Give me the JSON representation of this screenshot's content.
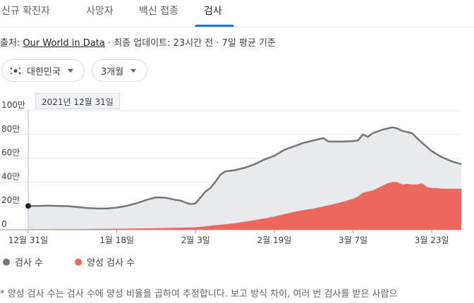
{
  "tabs": [
    {
      "label": "신규 확진자",
      "active": false
    },
    {
      "label": "사망자",
      "active": false
    },
    {
      "label": "백신 접종",
      "active": false
    },
    {
      "label": "검사",
      "active": true
    }
  ],
  "source": {
    "prefix": "출처: ",
    "link": "Our World in Data",
    "suffix": " · 최종 업데이트: 23시간 전 · 7일 평균 기준"
  },
  "filters": {
    "region": "대한민국",
    "period": "3개월"
  },
  "tooltip": "2021년 12월 31일",
  "legend": [
    {
      "label": "검사 수",
      "color": "#757575"
    },
    {
      "label": "양성 검사 수",
      "color": "#ee675c"
    }
  ],
  "footnote": "* 양성 검사 수는 검사 수에 양성 비율을 곱하여 추정합니다. 보고 방식 차이, 여러 번 검사를 받은 사람으",
  "chart_data": {
    "type": "area",
    "y_tick_labels": [
      "0",
      "20만",
      "40만",
      "60만",
      "80만",
      "100만"
    ],
    "y_ticks": [
      0,
      200000,
      400000,
      600000,
      800000,
      1000000
    ],
    "ylim": [
      0,
      1000000
    ],
    "x_tick_labels": [
      "12월 31일",
      "1월 18일",
      "2월 3일",
      "2월 19일",
      "3월 7일",
      "3월 23일"
    ],
    "x_tick_days": [
      0,
      18,
      34,
      50,
      66,
      82
    ],
    "x_range_days": [
      0,
      88
    ],
    "highlight_index": 0,
    "series": [
      {
        "name": "검사 수",
        "color": "#757575",
        "fill": "#e8eaed",
        "x": [
          0,
          2,
          4,
          6,
          8,
          10,
          12,
          14,
          16,
          18,
          20,
          22,
          24,
          26,
          28,
          30,
          31,
          32,
          33,
          34,
          35,
          36,
          37,
          38,
          39,
          40,
          42,
          44,
          46,
          48,
          50,
          52,
          54,
          56,
          58,
          60,
          61,
          62,
          64,
          66,
          67,
          68,
          69,
          70,
          72,
          73,
          74,
          75,
          76,
          78,
          80,
          82,
          84,
          86,
          88
        ],
        "values": [
          200000,
          200000,
          202000,
          200000,
          198000,
          190000,
          182000,
          178000,
          178000,
          186000,
          200000,
          222000,
          250000,
          272000,
          268000,
          250000,
          245000,
          228000,
          215000,
          222000,
          270000,
          320000,
          350000,
          400000,
          460000,
          490000,
          500000,
          520000,
          550000,
          590000,
          620000,
          670000,
          700000,
          730000,
          750000,
          770000,
          740000,
          740000,
          740000,
          745000,
          750000,
          800000,
          780000,
          810000,
          840000,
          850000,
          860000,
          850000,
          830000,
          810000,
          730000,
          660000,
          610000,
          575000,
          550000
        ]
      },
      {
        "name": "양성 검사 수",
        "color": "#ee675c",
        "fill": "#ee675c",
        "x": [
          0,
          5,
          10,
          15,
          20,
          25,
          30,
          34,
          36,
          38,
          40,
          42,
          44,
          46,
          48,
          50,
          52,
          54,
          56,
          58,
          60,
          62,
          64,
          66,
          67,
          68,
          69,
          70,
          71,
          72,
          73,
          74,
          75,
          76,
          77,
          78,
          79,
          80,
          81,
          82,
          83,
          84,
          86,
          88
        ],
        "values": [
          3000,
          4000,
          5000,
          7000,
          9000,
          12000,
          16000,
          20000,
          28000,
          38000,
          45000,
          55000,
          68000,
          80000,
          95000,
          110000,
          130000,
          150000,
          165000,
          178000,
          195000,
          215000,
          235000,
          260000,
          280000,
          310000,
          320000,
          330000,
          350000,
          370000,
          390000,
          400000,
          400000,
          380000,
          385000,
          380000,
          380000,
          390000,
          360000,
          350000,
          350000,
          345000,
          345000,
          345000
        ]
      }
    ]
  }
}
